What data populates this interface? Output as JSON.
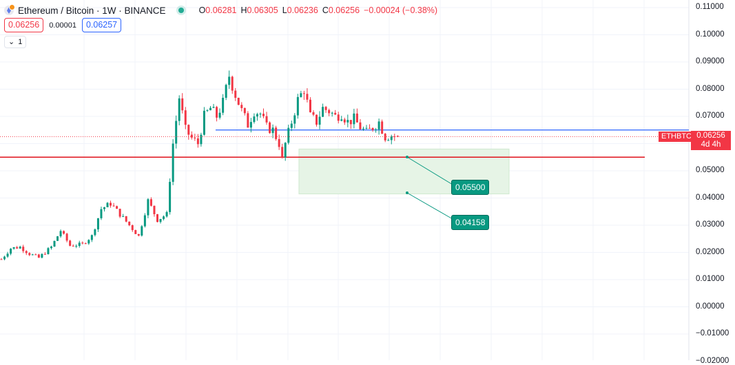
{
  "header": {
    "title": "Ethereum / Bitcoin · 1W · BINANCE",
    "open_label": "O",
    "open": "0.06281",
    "high_label": "H",
    "high": "0.06305",
    "low_label": "L",
    "low": "0.06236",
    "close_label": "C",
    "close": "0.06256",
    "change": "−0.00024 (−0.38%)"
  },
  "trade": {
    "sell": "0.06256",
    "spread": "0.00001",
    "buy": "0.06257"
  },
  "indicators_toggle": {
    "icon": "chevron-down-icon",
    "count": "1"
  },
  "price_axis": {
    "labels": [
      "0.11000",
      "0.10000",
      "0.09000",
      "0.08000",
      "0.07000",
      "0.06000",
      "0.05000",
      "0.04000",
      "0.03000",
      "0.02000",
      "0.01000",
      "0.00000",
      "−0.01000",
      "−0.02000"
    ]
  },
  "symbol_tag": "ETHBTC",
  "last_price": {
    "price": "0.06256",
    "countdown": "4d 4h"
  },
  "drawings": {
    "horizontal_lines": [
      0.065,
      0.055
    ],
    "rectangle": {
      "top": 0.058,
      "bottom": 0.0415
    },
    "callouts": [
      "0.05500",
      "0.04158"
    ]
  },
  "colors": {
    "up": "#089981",
    "down": "#f23645",
    "blue_line": "#2962ff",
    "red_line": "#e0101a",
    "zone": "#e6f4e6"
  },
  "chart_data": {
    "type": "candlestick",
    "ylim": [
      -0.02,
      0.11
    ],
    "close_path": [
      [
        0,
        0.0175
      ],
      [
        3,
        0.0215
      ],
      [
        6,
        0.022
      ],
      [
        9,
        0.0195
      ],
      [
        12,
        0.018
      ],
      [
        16,
        0.022
      ],
      [
        19,
        0.028
      ],
      [
        22,
        0.0225
      ],
      [
        26,
        0.023
      ],
      [
        29,
        0.026
      ],
      [
        32,
        0.036
      ],
      [
        35,
        0.038
      ],
      [
        38,
        0.034
      ],
      [
        41,
        0.03
      ],
      [
        44,
        0.026
      ],
      [
        47,
        0.039
      ],
      [
        50,
        0.032
      ],
      [
        53,
        0.034
      ],
      [
        55,
        0.06
      ],
      [
        57,
        0.077
      ],
      [
        59,
        0.065
      ],
      [
        61,
        0.062
      ],
      [
        63,
        0.06
      ],
      [
        65,
        0.07
      ],
      [
        67,
        0.073
      ],
      [
        69,
        0.07
      ],
      [
        71,
        0.075
      ],
      [
        73,
        0.085
      ],
      [
        75,
        0.078
      ],
      [
        77,
        0.072
      ],
      [
        79,
        0.067
      ],
      [
        81,
        0.072
      ],
      [
        83,
        0.071
      ],
      [
        85,
        0.066
      ],
      [
        87,
        0.065
      ],
      [
        89,
        0.06
      ],
      [
        90,
        0.054
      ],
      [
        91,
        0.06
      ],
      [
        93,
        0.068
      ],
      [
        95,
        0.076
      ],
      [
        97,
        0.08
      ],
      [
        99,
        0.07
      ],
      [
        101,
        0.068
      ],
      [
        103,
        0.073
      ],
      [
        105,
        0.072
      ],
      [
        107,
        0.07
      ],
      [
        109,
        0.071
      ],
      [
        111,
        0.068
      ],
      [
        113,
        0.069
      ],
      [
        115,
        0.066
      ],
      [
        117,
        0.064
      ],
      [
        119,
        0.066
      ],
      [
        121,
        0.068
      ],
      [
        123,
        0.0625
      ],
      [
        125,
        0.063
      ],
      [
        127,
        0.0626
      ]
    ]
  }
}
